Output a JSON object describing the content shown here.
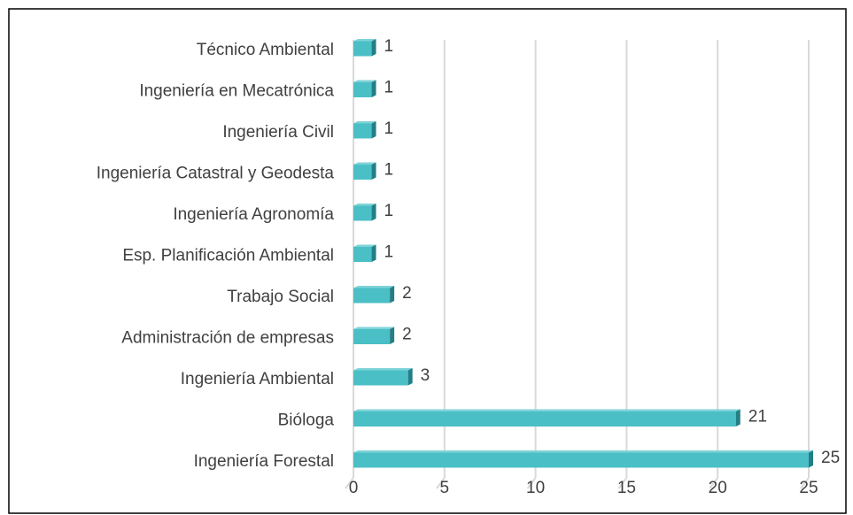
{
  "chart_data": {
    "type": "bar",
    "orientation": "horizontal",
    "categories": [
      "Técnico Ambiental",
      "Ingeniería en Mecatrónica",
      "Ingeniería Civil",
      "Ingeniería Catastral y Geodesta",
      "Ingeniería Agronomía",
      "Esp. Planificación Ambiental ",
      "Trabajo Social",
      "Administración de empresas",
      "Ingeniería Ambiental",
      "Bióloga",
      "Ingeniería Forestal"
    ],
    "values": [
      1,
      1,
      1,
      1,
      1,
      1,
      2,
      2,
      3,
      21,
      25
    ],
    "color": "#4bbfc6",
    "xlim": [
      0,
      25
    ],
    "xticks": [
      0,
      5,
      10,
      15,
      20,
      25
    ],
    "grid": true
  }
}
